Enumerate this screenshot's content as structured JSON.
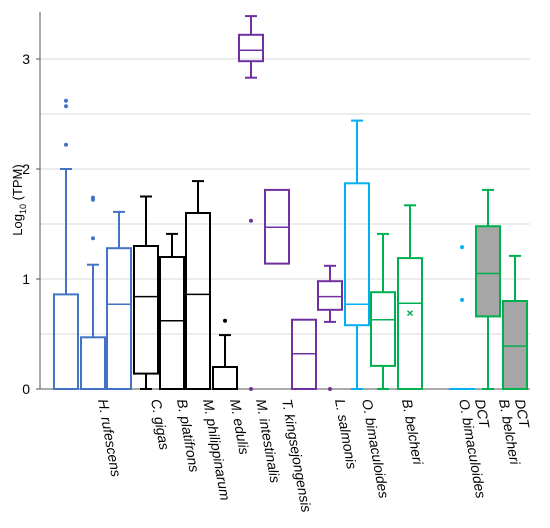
{
  "chart_data": {
    "type": "box",
    "ylabel_main": "Log",
    "ylabel_sub": "10",
    "ylabel_tail": " (TPM)",
    "ylim": [
      0,
      3.45
    ],
    "yticks": [
      "0",
      "1",
      "2",
      "3"
    ],
    "grid": "horizontal",
    "series": [
      {
        "category": "H. rufescens",
        "color": "#4472C4",
        "fill": "none",
        "boxes": [
          {
            "min": 0,
            "q1": 0,
            "median": 0,
            "q3": 0.86,
            "max": 2.0,
            "outliers": [
              2.22,
              2.57,
              2.62
            ]
          },
          {
            "min": 0,
            "q1": 0,
            "median": 0,
            "q3": 0.47,
            "max": 1.13,
            "outliers": [
              1.37,
              1.72,
              1.74
            ]
          },
          {
            "min": 0,
            "q1": 0,
            "median": 0.77,
            "q3": 1.28,
            "max": 1.61,
            "outliers": []
          }
        ]
      },
      {
        "category": "C. gigas",
        "color": "#000000",
        "fill": "none",
        "boxes": [
          {
            "min": 0,
            "q1": 0.14,
            "median": 0.84,
            "q3": 1.3,
            "max": 1.75,
            "outliers": []
          }
        ]
      },
      {
        "category": "B. platifrons",
        "color": "#000000",
        "fill": "none",
        "boxes": [
          {
            "min": 0,
            "q1": 0,
            "median": 0.62,
            "q3": 1.2,
            "max": 1.41,
            "outliers": []
          }
        ]
      },
      {
        "category": "M. philippinarum",
        "color": "#000000",
        "fill": "none",
        "boxes": [
          {
            "min": 0,
            "q1": 0,
            "median": 0.86,
            "q3": 1.6,
            "max": 1.89,
            "outliers": []
          }
        ]
      },
      {
        "category": "M. edulis",
        "color": "#000000",
        "fill": "none",
        "boxes": [
          {
            "min": 0,
            "q1": 0,
            "median": 0,
            "q3": 0.2,
            "max": 0.49,
            "outliers": [
              0.62
            ]
          }
        ]
      },
      {
        "category": "M. intestinalis",
        "color": "#7030A0",
        "fill": "none",
        "boxes": [
          {
            "min": 2.83,
            "q1": 2.98,
            "median": 3.08,
            "q3": 3.22,
            "max": 3.39,
            "outliers": [
              1.53,
              0.0
            ]
          }
        ]
      },
      {
        "category": "T. kingsejongensis",
        "color": "#7030A0",
        "fill": "none",
        "boxes": [
          {
            "min": 1.14,
            "q1": 1.14,
            "median": 1.47,
            "q3": 1.81,
            "max": 1.81,
            "outliers": []
          }
        ]
      },
      {
        "category": "L. salmonis",
        "color": "#7030A0",
        "fill": "none",
        "boxes": [
          {
            "min": 0,
            "q1": 0,
            "median": 0.32,
            "q3": 0.63,
            "max": 0.63,
            "outliers": []
          },
          {
            "min": 0.61,
            "q1": 0.72,
            "median": 0.84,
            "q3": 0.98,
            "max": 1.12,
            "outliers": [
              0.0
            ]
          }
        ]
      },
      {
        "category": "O. bimaculoides",
        "color": "#00B0F0",
        "fill": "none",
        "boxes": [
          {
            "min": 0,
            "q1": 0.58,
            "median": 0.77,
            "q3": 1.87,
            "max": 2.44,
            "outliers": []
          }
        ]
      },
      {
        "category": "B. belcheri",
        "color": "#00B050",
        "fill": "none",
        "boxes": [
          {
            "min": 0,
            "q1": 0.21,
            "median": 0.63,
            "q3": 0.88,
            "max": 1.41,
            "outliers": []
          },
          {
            "min": 0,
            "q1": 0,
            "median": 0.78,
            "q3": 1.19,
            "max": 1.67,
            "outliers": [],
            "mean": 0.69
          }
        ]
      },
      {
        "category": "O. bimaculoides DCT",
        "color": "#00B0F0",
        "fill": "none",
        "boxes": [
          {
            "min": 0,
            "q1": 0,
            "median": 0,
            "q3": 0,
            "max": 0,
            "outliers": [
              0.81,
              1.29
            ]
          }
        ]
      },
      {
        "category": "B. belcheri DCT",
        "color": "#00B050",
        "fill": "#A6A6A6",
        "boxes": [
          {
            "min": 0,
            "q1": 0.66,
            "median": 1.05,
            "q3": 1.48,
            "max": 1.81,
            "outliers": []
          },
          {
            "min": 0,
            "q1": 0,
            "median": 0.39,
            "q3": 0.8,
            "max": 1.21,
            "outliers": []
          }
        ]
      }
    ],
    "x_labels": [
      {
        "lines": [
          "H. rufescens"
        ]
      },
      {
        "lines": [
          "C. gigas"
        ]
      },
      {
        "lines": [
          "B. platifrons"
        ]
      },
      {
        "lines": [
          "M. philippinarum"
        ]
      },
      {
        "lines": [
          "M. edulis"
        ]
      },
      {
        "lines": [
          "M. intestinalis"
        ]
      },
      {
        "lines": [
          "T. kingsejongensis"
        ]
      },
      {
        "lines": [
          "L. salmonis"
        ]
      },
      {
        "lines": [
          "O. bimaculoides"
        ]
      },
      {
        "lines": [
          "B. belcheri"
        ]
      },
      {
        "lines": [
          "O. bimaculoides",
          "DCT"
        ]
      },
      {
        "lines": [
          "B. belcheri",
          "DCT"
        ]
      }
    ]
  }
}
